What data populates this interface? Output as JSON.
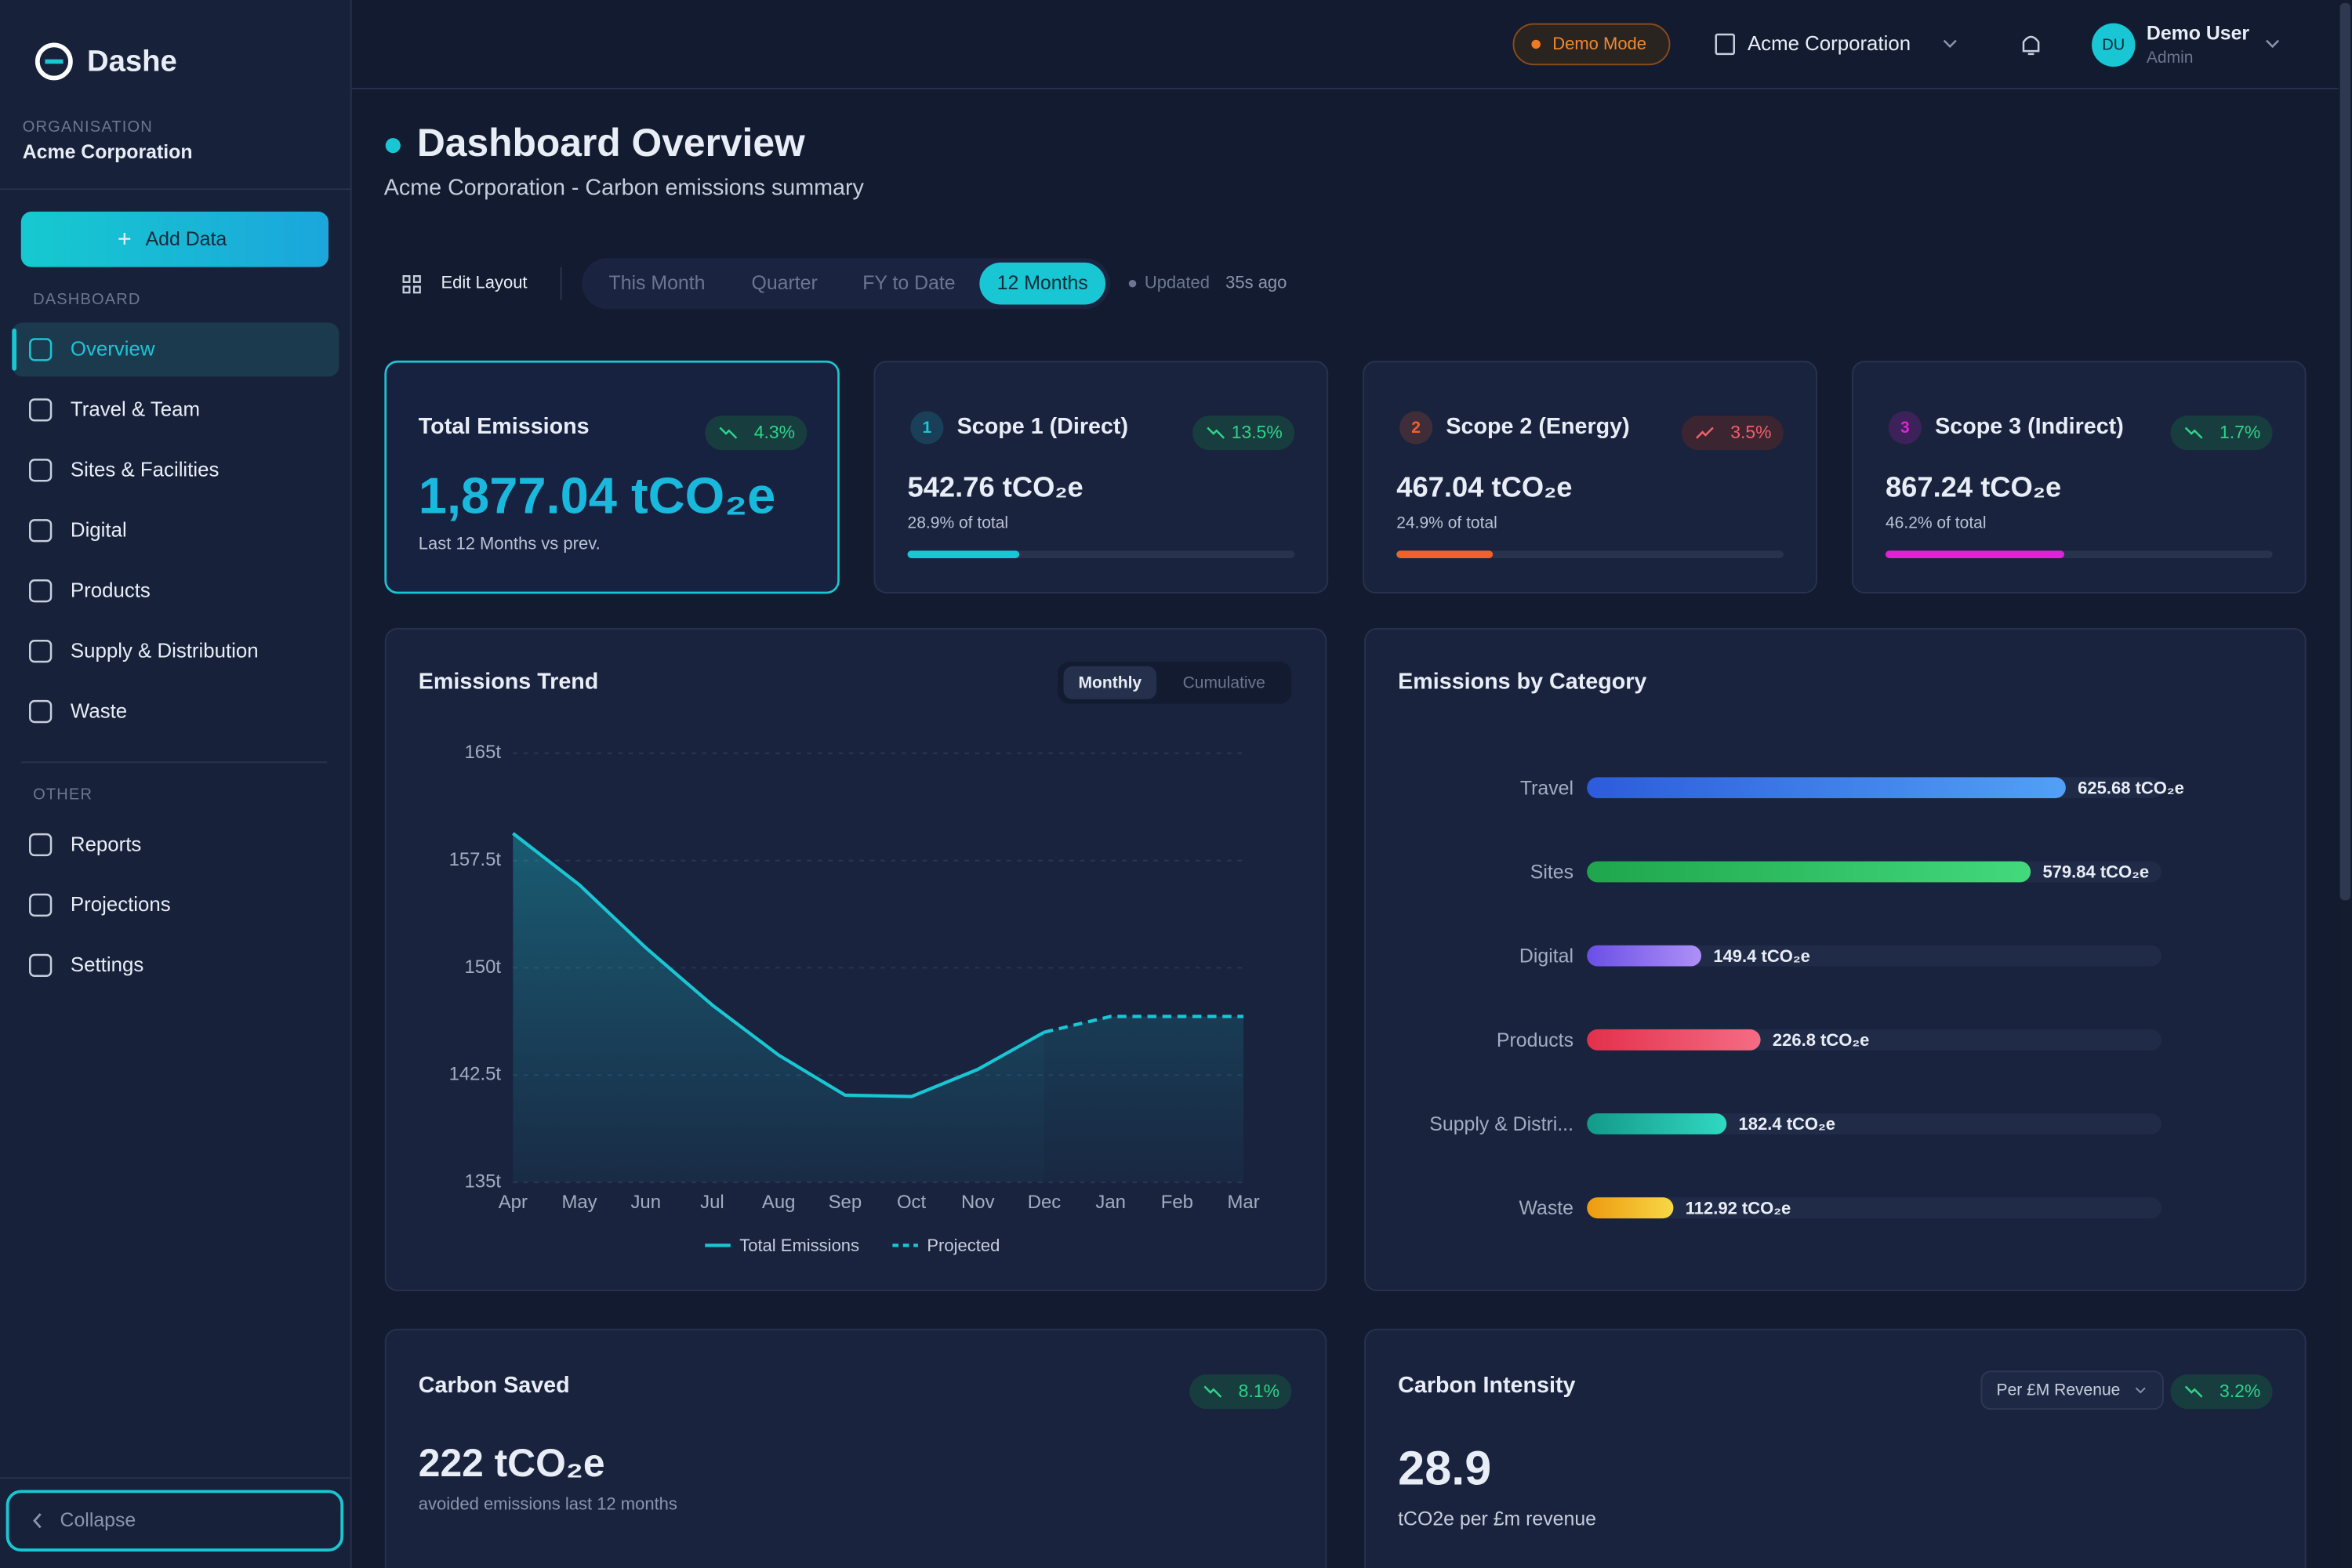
{
  "sidebar": {
    "brand": "Dashe",
    "org_label": "ORGANISATION",
    "org": "Acme Corporation",
    "add_data": "Add Data",
    "section1": "DASHBOARD",
    "nav": [
      "Overview",
      "Travel & Team",
      "Sites & Facilities",
      "Digital",
      "Products",
      "Supply & Distribution",
      "Waste"
    ],
    "section2": "OTHER",
    "nav2": [
      "Reports",
      "Projections",
      "Settings"
    ],
    "collapse": "Collapse"
  },
  "topbar": {
    "demo": "Demo Mode",
    "company": "Acme Corporation",
    "user_initials": "DU",
    "user_name": "Demo User",
    "user_role": "Admin"
  },
  "header": {
    "title": "Dashboard Overview",
    "subtitle": "Acme Corporation - Carbon emissions summary",
    "edit_layout": "Edit Layout",
    "periods": [
      "This Month",
      "Quarter",
      "FY to Date",
      "12 Months"
    ],
    "updated": "Updated",
    "updated_ago": "35s ago"
  },
  "total": {
    "title": "Total Emissions",
    "change": "4.3%",
    "trend": "down",
    "value": "1,877.04 tCO₂e",
    "note": "Last 12 Months vs prev."
  },
  "scopes": [
    {
      "number": "1",
      "title": "Scope 1 (Direct)",
      "change": "13.5%",
      "trend": "down",
      "value": "542.76 tCO₂e",
      "note": "28.9% of total",
      "share": 28.9,
      "color": "#19c6d4"
    },
    {
      "number": "2",
      "title": "Scope 2 (Energy)",
      "change": "3.5%",
      "trend": "up",
      "value": "467.04 tCO₂e",
      "note": "24.9% of total",
      "share": 24.9,
      "color": "#f0612e"
    },
    {
      "number": "3",
      "title": "Scope 3 (Indirect)",
      "change": "1.7%",
      "trend": "down",
      "value": "867.24 tCO₂e",
      "note": "46.2% of total",
      "share": 46.2,
      "color": "#e021d6"
    }
  ],
  "chart_data": [
    {
      "type": "line",
      "title": "Emissions Trend",
      "toggle": [
        "Monthly",
        "Cumulative"
      ],
      "categories": [
        "Apr",
        "May",
        "Jun",
        "Jul",
        "Aug",
        "Sep",
        "Oct",
        "Nov",
        "Dec",
        "Jan",
        "Feb",
        "Mar"
      ],
      "series": [
        {
          "name": "Total Emissions",
          "color": "#19c6d4",
          "dashed": false,
          "values": [
            159.4,
            155.8,
            151.4,
            147.4,
            143.9,
            141.1,
            141.0,
            142.9,
            145.5,
            null,
            null,
            null
          ]
        },
        {
          "name": "Projected",
          "color": "#19c6d4",
          "dashed": true,
          "values": [
            null,
            null,
            null,
            null,
            null,
            null,
            null,
            null,
            145.5,
            146.6,
            146.6,
            146.6
          ]
        }
      ],
      "ylim": [
        135,
        165
      ],
      "yticks": [
        {
          "value": 135,
          "label": "135t"
        },
        {
          "value": 142.5,
          "label": "142.5t"
        },
        {
          "value": 150,
          "label": "150t"
        },
        {
          "value": 157.5,
          "label": "157.5t"
        },
        {
          "value": 165,
          "label": "165t"
        }
      ],
      "grid": true
    },
    {
      "type": "bar",
      "orientation": "horizontal",
      "title": "Emissions by Category",
      "categories": [
        "Travel",
        "Sites",
        "Digital",
        "Products",
        "Supply & Distri...",
        "Waste"
      ],
      "values": [
        625.68,
        579.84,
        149.4,
        226.8,
        182.4,
        112.92
      ],
      "value_labels": [
        "625.68 tCO₂e",
        "579.84 tCO₂e",
        "149.4 tCO₂e",
        "226.8 tCO₂e",
        "182.4 tCO₂e",
        "112.92 tCO₂e"
      ],
      "colors": [
        [
          "#2d5bdc",
          "#52a0f6"
        ],
        [
          "#1fa64c",
          "#43d97d"
        ],
        [
          "#6a4fe6",
          "#ad90f6"
        ],
        [
          "#e3304c",
          "#f56c84"
        ],
        [
          "#139a89",
          "#30d8c2"
        ],
        [
          "#ee9a0e",
          "#f7d846"
        ]
      ]
    }
  ],
  "carbon_saved": {
    "title": "Carbon Saved",
    "change": "8.1%",
    "trend": "down",
    "value": "222 tCO₂e",
    "note": "avoided emissions last 12 months"
  },
  "carbon_intensity": {
    "title": "Carbon Intensity",
    "selector": "Per £M Revenue",
    "change": "3.2%",
    "trend": "down",
    "value": "28.9",
    "note": "tCO2e per £m revenue"
  }
}
